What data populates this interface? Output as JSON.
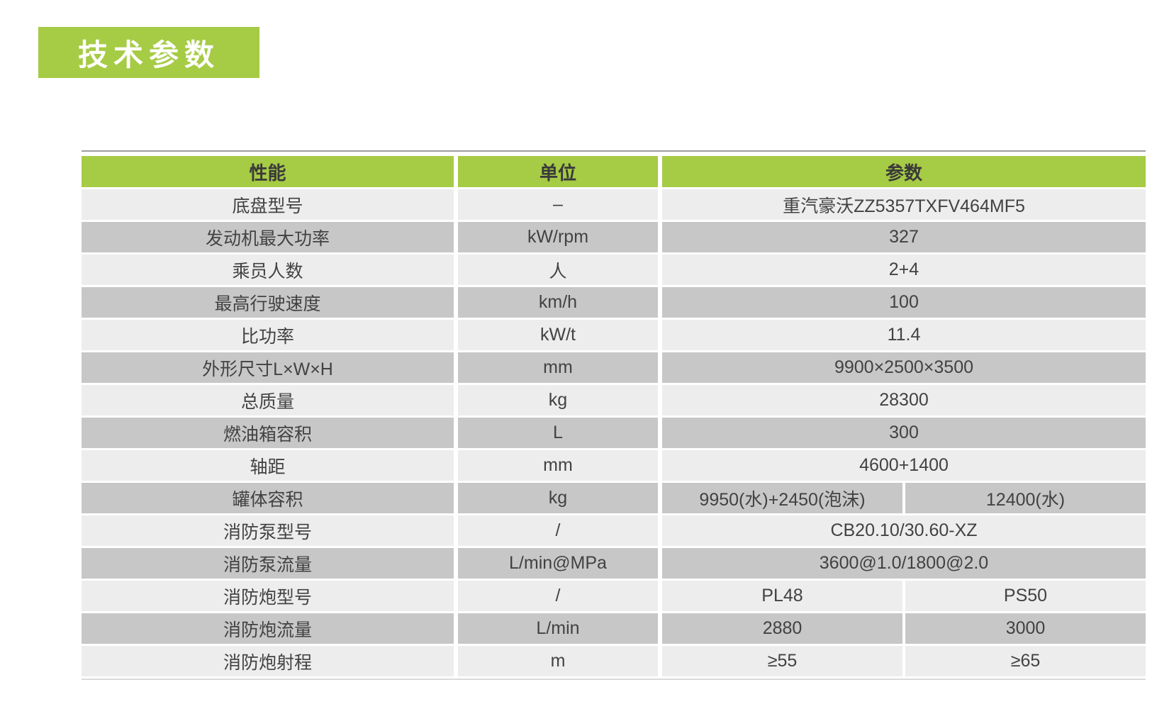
{
  "badge": {
    "label": "技术参数"
  },
  "colors": {
    "accent_green": "#a6cb45",
    "row_light": "#ededee",
    "row_dark": "#c7c7c8",
    "text": "#424242",
    "top_rule": "#9c9c9c"
  },
  "table": {
    "headers": [
      "性能",
      "单位",
      "参数"
    ],
    "rows": [
      {
        "name": "底盘型号",
        "unit": "–",
        "values": [
          "重汽豪沃ZZ5357TXFV464MF5"
        ]
      },
      {
        "name": "发动机最大功率",
        "unit": "kW/rpm",
        "values": [
          "327"
        ]
      },
      {
        "name": "乘员人数",
        "unit": "人",
        "values": [
          "2+4"
        ]
      },
      {
        "name": "最高行驶速度",
        "unit": "km/h",
        "values": [
          "100"
        ]
      },
      {
        "name": "比功率",
        "unit": "kW/t",
        "values": [
          "11.4"
        ]
      },
      {
        "name": "外形尺寸L×W×H",
        "unit": "mm",
        "values": [
          "9900×2500×3500"
        ]
      },
      {
        "name": "总质量",
        "unit": "kg",
        "values": [
          "28300"
        ]
      },
      {
        "name": "燃油箱容积",
        "unit": "L",
        "values": [
          "300"
        ]
      },
      {
        "name": "轴距",
        "unit": "mm",
        "values": [
          "4600+1400"
        ]
      },
      {
        "name": "罐体容积",
        "unit": "kg",
        "values": [
          "9950(水)+2450(泡沫)",
          "12400(水)"
        ]
      },
      {
        "name": "消防泵型号",
        "unit": "/",
        "values": [
          "CB20.10/30.60-XZ"
        ]
      },
      {
        "name": "消防泵流量",
        "unit": "L/min@MPa",
        "values": [
          "3600@1.0/1800@2.0"
        ]
      },
      {
        "name": "消防炮型号",
        "unit": "/",
        "values": [
          "PL48",
          "PS50"
        ]
      },
      {
        "name": "消防炮流量",
        "unit": "L/min",
        "values": [
          "2880",
          "3000"
        ]
      },
      {
        "name": "消防炮射程",
        "unit": "m",
        "values": [
          "≥55",
          "≥65"
        ]
      }
    ]
  }
}
